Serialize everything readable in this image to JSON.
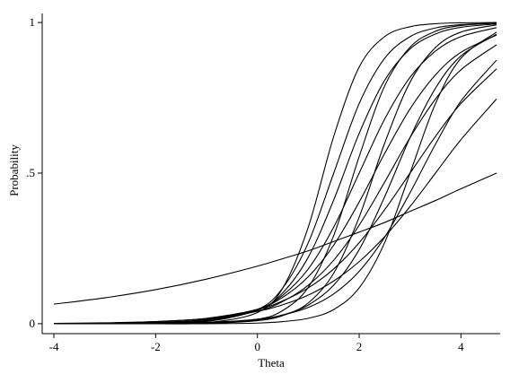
{
  "chart_data": {
    "type": "line",
    "x_label": "Theta",
    "y_label": "Probability",
    "x": [
      -4,
      -3,
      -2,
      -1,
      0,
      0.5,
      1,
      1.5,
      2,
      2.5,
      3,
      3.5,
      4,
      4.7
    ],
    "xlim": [
      -4.23,
      4.77
    ],
    "xticks": [
      -4,
      -2,
      0,
      2,
      4
    ],
    "ylim": [
      -0.033,
      1.03
    ],
    "yticks": [
      0,
      {
        "value": 0.5,
        "label": ".5"
      },
      1
    ],
    "grid": false,
    "series": [
      {
        "color": "#000000",
        "values": [
          0.065,
          0.086,
          0.113,
          0.148,
          0.191,
          0.216,
          0.242,
          0.273,
          0.304,
          0.336,
          0.373,
          0.409,
          0.448,
          0.5
        ]
      },
      {
        "color": "#000000",
        "values": [
          0,
          0,
          0,
          0.003,
          0.037,
          0.119,
          0.321,
          0.622,
          0.852,
          0.953,
          0.986,
          0.996,
          0.999,
          1.0
        ]
      },
      {
        "color": "#000000",
        "values": [
          0,
          0,
          0.001,
          0.007,
          0.047,
          0.119,
          0.269,
          0.5,
          0.731,
          0.881,
          0.953,
          0.982,
          0.993,
          0.998
        ]
      },
      {
        "color": "#000000",
        "values": [
          0,
          0,
          0.001,
          0.008,
          0.045,
          0.103,
          0.221,
          0.411,
          0.632,
          0.808,
          0.912,
          0.962,
          0.984,
          0.995
        ]
      },
      {
        "color": "#000000",
        "values": [
          0,
          0,
          0,
          0.002,
          0.015,
          0.044,
          0.121,
          0.293,
          0.555,
          0.789,
          0.918,
          0.971,
          0.99,
          0.998
        ]
      },
      {
        "color": "#000000",
        "values": [
          0,
          0.001,
          0.002,
          0.011,
          0.047,
          0.095,
          0.182,
          0.321,
          0.5,
          0.679,
          0.818,
          0.905,
          0.953,
          0.983
        ]
      },
      {
        "color": "#000000",
        "values": [
          0,
          0.001,
          0.004,
          0.014,
          0.048,
          0.088,
          0.156,
          0.261,
          0.404,
          0.565,
          0.713,
          0.826,
          0.901,
          0.958
        ]
      },
      {
        "color": "#000000",
        "values": [
          0,
          0,
          0,
          0.001,
          0.01,
          0.027,
          0.069,
          0.168,
          0.354,
          0.599,
          0.802,
          0.917,
          0.968,
          0.992
        ]
      },
      {
        "color": "#000000",
        "values": [
          0,
          0.001,
          0.004,
          0.013,
          0.042,
          0.074,
          0.128,
          0.211,
          0.327,
          0.47,
          0.618,
          0.746,
          0.843,
          0.926
        ]
      },
      {
        "color": "#000000",
        "values": [
          0,
          0,
          0.001,
          0.003,
          0.013,
          0.029,
          0.062,
          0.128,
          0.246,
          0.421,
          0.618,
          0.782,
          0.889,
          0.961
        ]
      },
      {
        "color": "#000000",
        "values": [
          0,
          0,
          0,
          0,
          0.002,
          0.007,
          0.018,
          0.047,
          0.119,
          0.269,
          0.5,
          0.731,
          0.881,
          0.968
        ]
      },
      {
        "color": "#000000",
        "values": [
          0.001,
          0.002,
          0.007,
          0.018,
          0.047,
          0.076,
          0.119,
          0.182,
          0.269,
          0.378,
          0.5,
          0.622,
          0.731,
          0.846
        ]
      },
      {
        "color": "#000000",
        "values": [
          0,
          0,
          0.001,
          0.004,
          0.015,
          0.029,
          0.054,
          0.099,
          0.174,
          0.287,
          0.435,
          0.596,
          0.739,
          0.875
        ]
      },
      {
        "color": "#000000",
        "values": [
          0.001,
          0.003,
          0.007,
          0.017,
          0.041,
          0.063,
          0.095,
          0.142,
          0.206,
          0.289,
          0.389,
          0.5,
          0.611,
          0.746
        ]
      }
    ]
  }
}
